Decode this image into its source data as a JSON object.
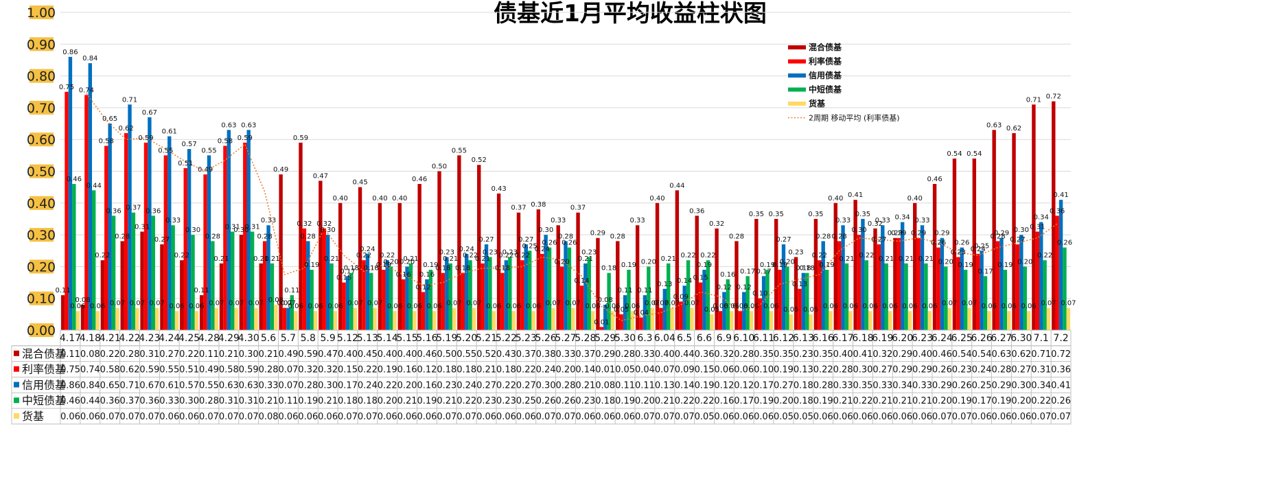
{
  "chart_data": {
    "type": "bar",
    "title": "债基近1月平均收益柱状图",
    "categories": [
      "4.17",
      "4.18",
      "4.21",
      "4.22",
      "4.23",
      "4.24",
      "4.25",
      "4.28",
      "4.29",
      "4.30",
      "5.6",
      "5.7",
      "5.8",
      "5.9",
      "5.12",
      "5.13",
      "5.14",
      "5.15",
      "5.16",
      "5.19",
      "5.20",
      "5.21",
      "5.22",
      "5.23",
      "5.26",
      "5.27",
      "5.28",
      "5.29",
      "5.30",
      "6.3",
      "6.04",
      "6.5",
      "6.6",
      "6.9",
      "6.10",
      "6.11",
      "6.12",
      "6.13",
      "6.16",
      "6.17",
      "6.18",
      "6.19",
      "6.20",
      "6.23",
      "6.24",
      "6.25",
      "6.26",
      "6.27",
      "6.30",
      "7.1",
      "7.2"
    ],
    "ylim": [
      0,
      1.0
    ],
    "yticks": [
      "0.00",
      "0.10",
      "0.20",
      "0.30",
      "0.40",
      "0.50",
      "0.60",
      "0.70",
      "0.80",
      "0.90",
      "1.00"
    ],
    "grid": true,
    "legend_position": "top-right",
    "series": [
      {
        "name": "混合债基",
        "color": "#c00000",
        "values": [
          0.11,
          0.08,
          0.22,
          0.28,
          0.31,
          0.27,
          0.22,
          0.11,
          0.21,
          0.3,
          0.21,
          0.49,
          0.59,
          0.47,
          0.4,
          0.45,
          0.4,
          0.4,
          0.46,
          0.5,
          0.55,
          0.52,
          0.43,
          0.37,
          0.38,
          0.33,
          0.37,
          0.29,
          0.28,
          0.33,
          0.4,
          0.44,
          0.36,
          0.32,
          0.28,
          0.35,
          0.35,
          0.23,
          0.35,
          0.4,
          0.41,
          0.32,
          0.29,
          0.4,
          0.46,
          0.54,
          0.54,
          0.63,
          0.62,
          0.71,
          0.72
        ]
      },
      {
        "name": "利率债基",
        "color": "#ff0000",
        "values": [
          0.75,
          0.74,
          0.58,
          0.62,
          0.59,
          0.55,
          0.51,
          0.49,
          0.58,
          0.59,
          0.28,
          0.07,
          0.32,
          0.32,
          0.15,
          0.22,
          0.19,
          0.16,
          0.12,
          0.18,
          0.18,
          0.21,
          0.18,
          0.22,
          0.24,
          0.2,
          0.14,
          0.01,
          0.05,
          0.04,
          0.07,
          0.09,
          0.15,
          0.06,
          0.06,
          0.1,
          0.19,
          0.13,
          0.22,
          0.28,
          0.3,
          0.27,
          0.29,
          0.29,
          0.26,
          0.23,
          0.24,
          0.28,
          0.27,
          0.31,
          0.36
        ]
      },
      {
        "name": "信用债基",
        "color": "#0070c0",
        "values": [
          0.86,
          0.84,
          0.65,
          0.71,
          0.67,
          0.61,
          0.57,
          0.55,
          0.63,
          0.63,
          0.33,
          0.07,
          0.28,
          0.3,
          0.17,
          0.24,
          0.22,
          0.2,
          0.16,
          0.23,
          0.24,
          0.27,
          0.22,
          0.27,
          0.3,
          0.28,
          0.21,
          0.08,
          0.11,
          0.11,
          0.13,
          0.14,
          0.19,
          0.12,
          0.12,
          0.17,
          0.27,
          0.18,
          0.28,
          0.33,
          0.35,
          0.33,
          0.34,
          0.33,
          0.29,
          0.26,
          0.25,
          0.29,
          0.3,
          0.34,
          0.41
        ]
      },
      {
        "name": "中短债基",
        "color": "#00b050",
        "values": [
          0.46,
          0.44,
          0.36,
          0.37,
          0.36,
          0.33,
          0.3,
          0.28,
          0.31,
          0.31,
          0.21,
          0.11,
          0.19,
          0.21,
          0.18,
          0.18,
          0.2,
          0.21,
          0.19,
          0.21,
          0.22,
          0.23,
          0.23,
          0.25,
          0.26,
          0.26,
          0.23,
          0.18,
          0.19,
          0.2,
          0.21,
          0.22,
          0.22,
          0.16,
          0.17,
          0.19,
          0.2,
          0.18,
          0.19,
          0.21,
          0.22,
          0.21,
          0.21,
          0.21,
          0.2,
          0.19,
          0.17,
          0.19,
          0.2,
          0.22,
          0.26
        ]
      },
      {
        "name": "货基",
        "color": "#ffd966",
        "values": [
          0.06,
          0.06,
          0.07,
          0.07,
          0.07,
          0.06,
          0.06,
          0.07,
          0.07,
          0.07,
          0.08,
          0.06,
          0.06,
          0.06,
          0.07,
          0.07,
          0.06,
          0.06,
          0.06,
          0.07,
          0.07,
          0.06,
          0.06,
          0.06,
          0.07,
          0.07,
          0.06,
          0.06,
          0.06,
          0.07,
          0.07,
          0.07,
          0.05,
          0.06,
          0.06,
          0.06,
          0.05,
          0.05,
          0.06,
          0.06,
          0.06,
          0.06,
          0.06,
          0.06,
          0.07,
          0.07,
          0.06,
          0.06,
          0.06,
          0.07,
          0.07
        ]
      }
    ],
    "trendline": {
      "name": "2周期 移动平均 (利率债基)",
      "color": "#ed7d31",
      "style": "dotted"
    }
  }
}
